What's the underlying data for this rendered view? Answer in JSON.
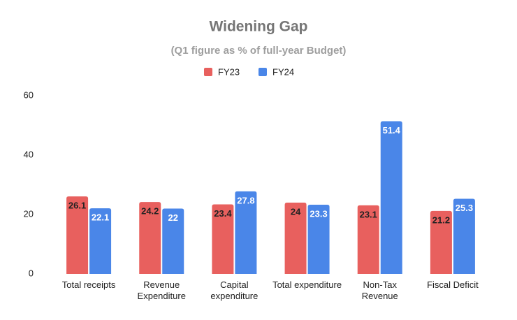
{
  "chart_data": {
    "type": "bar",
    "title": "Widening Gap",
    "subtitle": "(Q1 figure as % of full-year Budget)",
    "categories": [
      "Total receipts",
      "Revenue Expenditure",
      "Capital expenditure",
      "Total expenditure",
      "Non-Tax Revenue",
      "Fiscal Deficit"
    ],
    "series": [
      {
        "name": "FY23",
        "color": "#e8605e",
        "values": [
          26.1,
          24.2,
          23.4,
          24,
          23.1,
          21.2
        ]
      },
      {
        "name": "FY24",
        "color": "#4a86e8",
        "values": [
          22.1,
          22,
          27.8,
          23.3,
          51.4,
          25.3
        ]
      }
    ],
    "ylim": [
      0,
      60
    ],
    "yticks": [
      0,
      20,
      40,
      60
    ],
    "grid": false,
    "legend": "top"
  }
}
